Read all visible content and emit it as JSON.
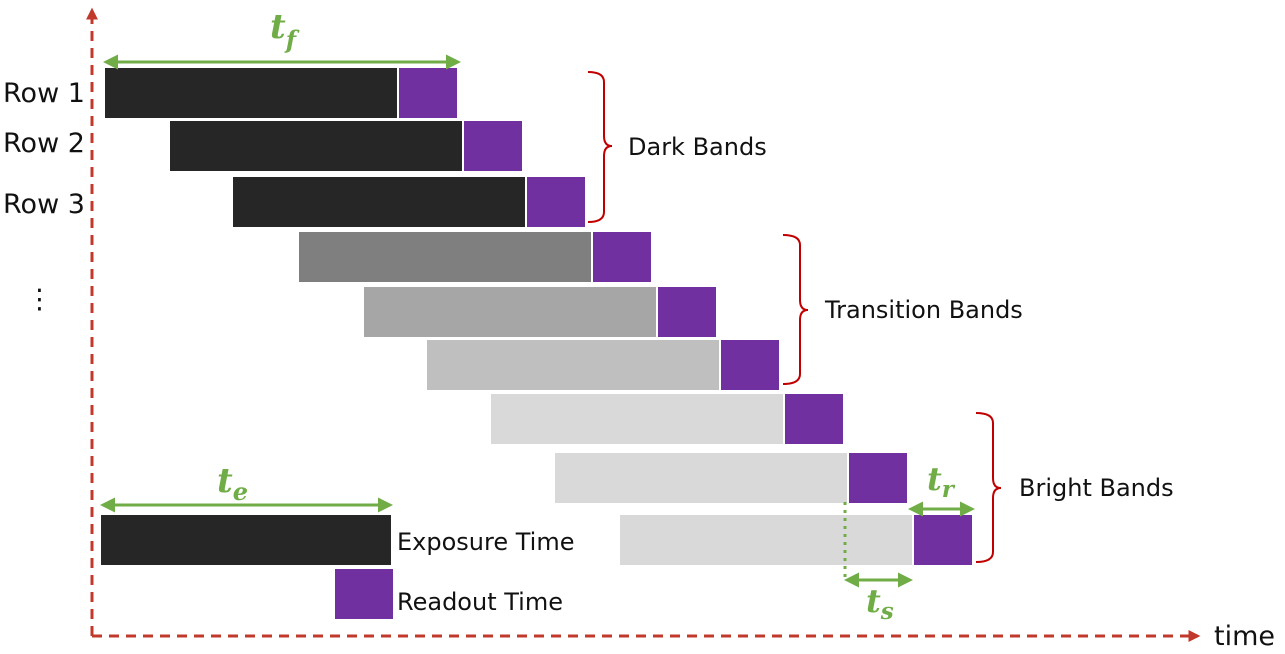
{
  "rows": {
    "labels": [
      "Row 1",
      "Row 2",
      "Row 3"
    ],
    "continuation": "⋮"
  },
  "axis": {
    "x_label": "time"
  },
  "bands": {
    "dark": "Dark Bands",
    "transition": "Transition Bands",
    "bright": "Bright Bands"
  },
  "legend": {
    "exposure": "Exposure Time",
    "readout": "Readout Time"
  },
  "symbols": {
    "tf": {
      "base": "t",
      "sub": "f"
    },
    "te": {
      "base": "t",
      "sub": "e"
    },
    "tr": {
      "base": "t",
      "sub": "r"
    },
    "ts": {
      "base": "t",
      "sub": "s"
    }
  },
  "exposure_shades": [
    "#262626",
    "#262626",
    "#262626",
    "#7f7f7f",
    "#a6a6a6",
    "#bfbfbf",
    "#d9d9d9",
    "#d9d9d9",
    "#d9d9d9"
  ],
  "colors": {
    "readout": "#7030a0",
    "axis": "#c0392b",
    "bracket": "#c00000",
    "measure": "#70ad47",
    "exposure_legend": "#262626"
  }
}
